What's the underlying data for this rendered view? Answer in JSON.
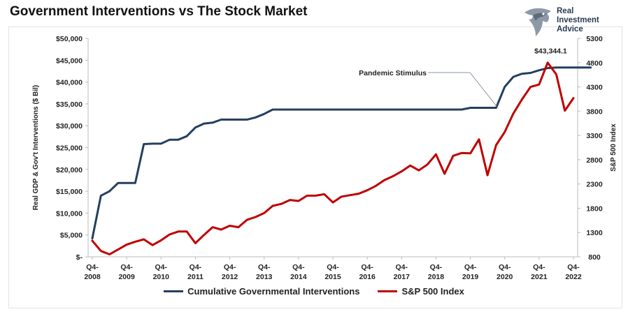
{
  "page": {
    "title": "Government Interventions vs The Stock Market"
  },
  "logo": {
    "line1": "Real",
    "line2": "Investment",
    "line3": "Advice"
  },
  "chart_data": {
    "type": "line",
    "title": "Government Interventions vs The Stock Market",
    "x_labels": [
      {
        "idx": 0,
        "line1": "Q4-",
        "line2": "2008"
      },
      {
        "idx": 4,
        "line1": "Q4-",
        "line2": "2009"
      },
      {
        "idx": 8,
        "line1": "Q4-",
        "line2": "2010"
      },
      {
        "idx": 12,
        "line1": "Q4-",
        "line2": "2011"
      },
      {
        "idx": 16,
        "line1": "Q4-",
        "line2": "2012"
      },
      {
        "idx": 20,
        "line1": "Q4-",
        "line2": "2013"
      },
      {
        "idx": 24,
        "line1": "Q4-",
        "line2": "2014"
      },
      {
        "idx": 28,
        "line1": "Q4-",
        "line2": "2015"
      },
      {
        "idx": 32,
        "line1": "Q4-",
        "line2": "2016"
      },
      {
        "idx": 36,
        "line1": "Q4-",
        "line2": "2017"
      },
      {
        "idx": 40,
        "line1": "Q4-",
        "line2": "2018"
      },
      {
        "idx": 44,
        "line1": "Q4-",
        "line2": "2019"
      },
      {
        "idx": 48,
        "line1": "Q4-",
        "line2": "2020"
      },
      {
        "idx": 52,
        "line1": "Q4-",
        "line2": "2021"
      },
      {
        "idx": 56,
        "line1": "Q4-",
        "line2": "2022"
      }
    ],
    "y_left": {
      "label": "Real GDP & Gov't Interventions ($ Bil)",
      "min": 0,
      "max": 50000,
      "ticks": [
        0,
        5000,
        10000,
        15000,
        20000,
        25000,
        30000,
        35000,
        40000,
        45000,
        50000
      ],
      "tick_labels": [
        "$-",
        "$5,000",
        "$10,000",
        "$15,000",
        "$20,000",
        "$25,000",
        "$30,000",
        "$35,000",
        "$40,000",
        "$45,000",
        "$50,000"
      ]
    },
    "y_right": {
      "label": "S&P 500 Index",
      "min": 800,
      "max": 5300,
      "ticks": [
        800,
        1300,
        1800,
        2300,
        2800,
        3300,
        3800,
        4300,
        4800,
        5300
      ],
      "tick_labels": [
        "800",
        "1300",
        "1800",
        "2300",
        "2800",
        "3300",
        "3800",
        "4300",
        "4800",
        "5300"
      ]
    },
    "series": [
      {
        "name": "Cumulative Governmental Interventions",
        "color": "#243f60",
        "axis": "left",
        "values": [
          4200,
          14000,
          15000,
          16900,
          16900,
          16900,
          25800,
          25900,
          25900,
          26800,
          26800,
          27600,
          29600,
          30500,
          30700,
          31400,
          31400,
          31400,
          31400,
          31900,
          32700,
          33700,
          33700,
          33700,
          33700,
          33700,
          33700,
          33700,
          33700,
          33700,
          33700,
          33700,
          33700,
          33700,
          33700,
          33700,
          33700,
          33700,
          33700,
          33700,
          33700,
          33700,
          33700,
          33700,
          34100,
          34100,
          34100,
          34100,
          38900,
          41200,
          41900,
          42100,
          42700,
          43200,
          43344.1,
          43344.1,
          43344.1,
          43344.1,
          43344.1
        ]
      },
      {
        "name": "S&P 500 Index",
        "color": "#c00000",
        "axis": "right",
        "values": [
          1130,
          920,
          850,
          950,
          1050,
          1110,
          1160,
          1040,
          1140,
          1260,
          1320,
          1320,
          1080,
          1250,
          1410,
          1360,
          1440,
          1410,
          1560,
          1620,
          1700,
          1850,
          1890,
          1970,
          1950,
          2060,
          2060,
          2090,
          1920,
          2040,
          2070,
          2100,
          2170,
          2260,
          2380,
          2460,
          2560,
          2680,
          2580,
          2700,
          2910,
          2510,
          2880,
          2940,
          2930,
          3220,
          2480,
          3100,
          3370,
          3750,
          4040,
          4300,
          4350,
          4800,
          4560,
          3810,
          4070
        ]
      }
    ],
    "annotations": [
      {
        "text": "$43,344.1",
        "series": 0,
        "idx": 54
      },
      {
        "text": "Pandemic Stimulus",
        "series": 0,
        "idx": 47
      }
    ],
    "legend": "bottom",
    "grid": false
  }
}
